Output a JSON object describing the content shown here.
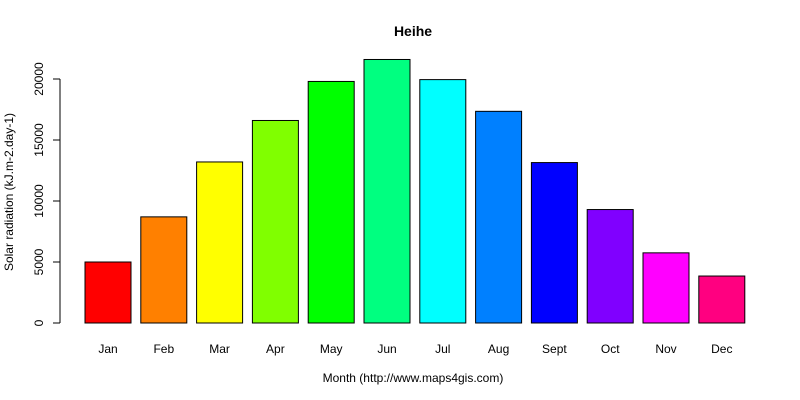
{
  "chart_data": {
    "type": "bar",
    "title": "Heihe",
    "xlabel": "Month (http://www.maps4gis.com)",
    "ylabel": "Solar radiation (kJ.m-2.day-1)",
    "categories": [
      "Jan",
      "Feb",
      "Mar",
      "Apr",
      "May",
      "Jun",
      "Jul",
      "Aug",
      "Sept",
      "Oct",
      "Nov",
      "Dec"
    ],
    "values": [
      5000,
      8700,
      13200,
      16600,
      19800,
      21600,
      19950,
      17350,
      13150,
      9300,
      5750,
      3850
    ],
    "colors": [
      "#ff0000",
      "#ff8000",
      "#ffff00",
      "#80ff00",
      "#00ff00",
      "#00ff80",
      "#00ffff",
      "#0080ff",
      "#0000ff",
      "#8000ff",
      "#ff00ff",
      "#ff0080"
    ],
    "ylim": [
      0,
      22000
    ],
    "yticks": [
      0,
      5000,
      10000,
      15000,
      20000
    ],
    "grid": false,
    "legend": "none"
  }
}
